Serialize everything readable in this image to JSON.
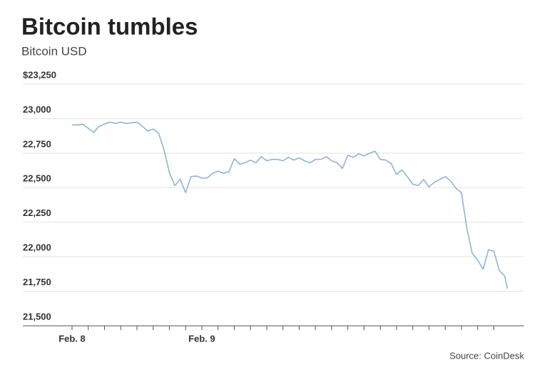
{
  "chart_data": {
    "type": "line",
    "title": "Bitcoin tumbles",
    "subtitle": "Bitcoin USD",
    "source": "Source: CoinDesk",
    "x": [
      0,
      1,
      2,
      3,
      4,
      5,
      6,
      7,
      8,
      9,
      10,
      11,
      12,
      13,
      14,
      15,
      16,
      17,
      18,
      19,
      20,
      21,
      22,
      23,
      24,
      25,
      26,
      27,
      28,
      29,
      30,
      31,
      32,
      33,
      34,
      35,
      36,
      37,
      38,
      39,
      40,
      41,
      42,
      43,
      44,
      45,
      46,
      47,
      48,
      49,
      50,
      51,
      52,
      53,
      54,
      55,
      56,
      57,
      58,
      59,
      60,
      61,
      62,
      63,
      64,
      65,
      66,
      67,
      68,
      69,
      70,
      71,
      72,
      73,
      74,
      75,
      76,
      77,
      78,
      79,
      80,
      80.5
    ],
    "series": [
      {
        "name": "Bitcoin USD",
        "color": "#8fb4d6",
        "values": [
          22955,
          22955,
          22960,
          22930,
          22900,
          22945,
          22960,
          22975,
          22965,
          22975,
          22965,
          22970,
          22975,
          22945,
          22910,
          22925,
          22895,
          22775,
          22610,
          22515,
          22560,
          22465,
          22580,
          22585,
          22570,
          22570,
          22605,
          22620,
          22605,
          22615,
          22710,
          22670,
          22680,
          22700,
          22680,
          22725,
          22695,
          22705,
          22705,
          22695,
          22720,
          22700,
          22715,
          22695,
          22680,
          22705,
          22705,
          22725,
          22695,
          22680,
          22640,
          22735,
          22720,
          22745,
          22730,
          22750,
          22765,
          22705,
          22700,
          22675,
          22595,
          22630,
          22580,
          22525,
          22515,
          22560,
          22505,
          22540,
          22560,
          22580,
          22550,
          22495,
          22465,
          22205,
          22025,
          21975,
          21910,
          22050,
          22040,
          21900,
          21860,
          21770
        ]
      }
    ],
    "xlim": [
      -9.1,
      83.6
    ],
    "xticks": [
      {
        "value": 0,
        "label": "Feb. 8"
      },
      {
        "value": 24,
        "label": "Feb. 9"
      }
    ],
    "xminorticks": [
      3,
      6,
      9,
      12,
      15,
      18,
      21,
      27,
      30,
      33,
      36,
      39,
      42,
      45,
      48,
      51,
      54,
      57,
      60,
      63,
      66,
      69,
      72,
      75,
      78
    ],
    "ylim": [
      21500,
      23250
    ],
    "yticks": [
      {
        "value": 21500,
        "label": "21,500"
      },
      {
        "value": 21750,
        "label": "21,750"
      },
      {
        "value": 22000,
        "label": "22,000"
      },
      {
        "value": 22250,
        "label": "22,250"
      },
      {
        "value": 22500,
        "label": "22,500"
      },
      {
        "value": 22750,
        "label": "22,750"
      },
      {
        "value": 23000,
        "label": "23,000"
      },
      {
        "value": 23250,
        "label": "$23,250"
      }
    ],
    "grid": true
  }
}
